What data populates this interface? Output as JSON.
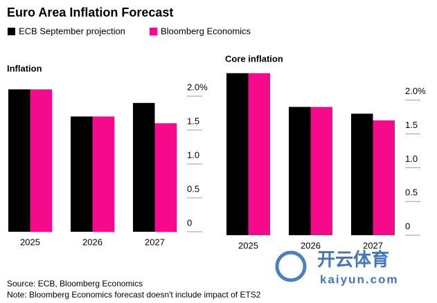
{
  "title": "Euro Area Inflation Forecast",
  "source": "Source: ECB, Bloomberg Economics",
  "note": "Note: Bloomberg Economics forecast doesn't include impact of ETS2",
  "watermark": {
    "brand": "开云体育",
    "site": "kaiyun.com"
  },
  "chart_data": [
    {
      "type": "bar",
      "title": "Inflation",
      "categories": [
        "2025",
        "2026",
        "2027"
      ],
      "series": [
        {
          "name": "ECB September projection",
          "color": "#000000",
          "values": [
            2.1,
            1.7,
            1.9
          ]
        },
        {
          "name": "Bloomberg Economics",
          "color": "#f50a8c",
          "values": [
            2.1,
            1.7,
            1.6
          ]
        }
      ],
      "ylim": [
        0,
        2.5
      ],
      "yticks": [
        0,
        0.5,
        {
          "value": 1,
          "label": "1.0"
        },
        1.5,
        {
          "value": 2,
          "label": "2.0%"
        }
      ]
    },
    {
      "type": "bar",
      "title": "Core inflation",
      "categories": [
        "2025",
        "2026",
        "2027"
      ],
      "series": [
        {
          "name": "ECB September projection",
          "color": "#000000",
          "values": [
            2.4,
            1.9,
            1.8
          ]
        },
        {
          "name": "Bloomberg Economics",
          "color": "#f50a8c",
          "values": [
            2.4,
            1.9,
            1.7
          ]
        }
      ],
      "ylim": [
        0,
        2.5
      ],
      "yticks": [
        0,
        0.5,
        {
          "value": 1,
          "label": "1.0"
        },
        1.5,
        {
          "value": 2,
          "label": "2.0%"
        }
      ]
    }
  ]
}
